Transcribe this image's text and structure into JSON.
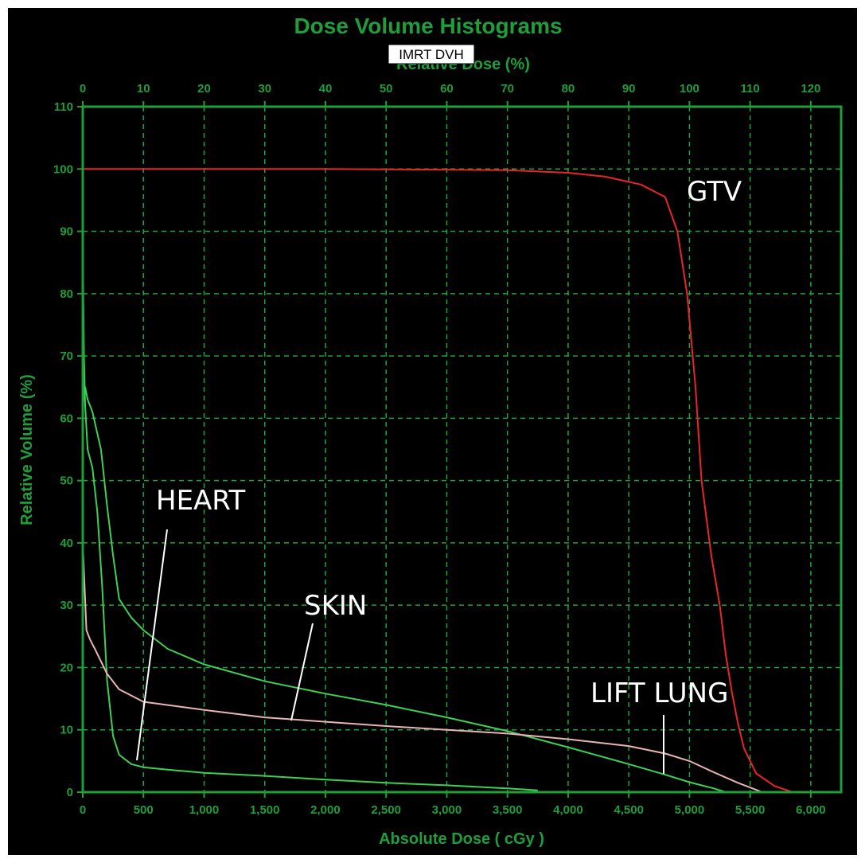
{
  "chart_data": {
    "type": "line",
    "title": "Dose Volume Histograms",
    "subtitle": "IMRT DVH",
    "xlabel": "Absolute Dose ( cGy )",
    "x2label": "Relative Dose (%)",
    "ylabel": "Relative Volume (%)",
    "xlim": [
      0,
      6250
    ],
    "ylim": [
      0,
      110
    ],
    "x2lim": [
      0,
      125
    ],
    "grid": true,
    "xticks": [
      0,
      500,
      1000,
      1500,
      2000,
      2500,
      3000,
      3500,
      4000,
      4500,
      5000,
      5500,
      6000
    ],
    "xtick_labels": [
      "0",
      "500",
      "1,000",
      "1,500",
      "2,000",
      "2,500",
      "3,000",
      "3,500",
      "4,000",
      "4,500",
      "5,000",
      "5,500",
      "6,000"
    ],
    "x2ticks": [
      0,
      10,
      20,
      30,
      40,
      50,
      60,
      70,
      80,
      90,
      100,
      110,
      120
    ],
    "x2tick_labels": [
      "0",
      "10",
      "20",
      "30",
      "40",
      "50",
      "60",
      "70",
      "80",
      "90",
      "100",
      "110",
      "120"
    ],
    "yticks": [
      0,
      10,
      20,
      30,
      40,
      50,
      60,
      70,
      80,
      90,
      100,
      110
    ],
    "ytick_labels": [
      "0",
      "10",
      "20",
      "30",
      "40",
      "50",
      "60",
      "70",
      "80",
      "90",
      "100",
      "110"
    ],
    "colors": {
      "background": "#000000",
      "frame": "#1f9e3a",
      "grid": "#1fa33c",
      "text": "#1f9e3a",
      "annotation": "#ffffff"
    },
    "series": [
      {
        "key": "gtv",
        "color": "#e8262a",
        "x": [
          0,
          1000,
          2000,
          3000,
          3500,
          4000,
          4300,
          4600,
          4800,
          4900,
          4980,
          5050,
          5100,
          5180,
          5250,
          5300,
          5350,
          5400,
          5450,
          5550,
          5700,
          5850
        ],
        "y": [
          100,
          100,
          100,
          99.9,
          99.8,
          99.4,
          98.8,
          97.5,
          95.5,
          90,
          80,
          65,
          50,
          38,
          30,
          22,
          16,
          11,
          7,
          3,
          1,
          0
        ]
      },
      {
        "key": "heart",
        "color": "#3ecf55",
        "x": [
          0,
          10,
          20,
          40,
          80,
          120,
          160,
          200,
          250,
          300,
          400,
          500,
          700,
          1000,
          1500,
          2000,
          2500,
          3000,
          3500,
          3750
        ],
        "y": [
          88,
          70,
          62,
          55,
          52,
          45,
          33,
          18,
          9,
          6,
          4.5,
          4,
          3.6,
          3.1,
          2.6,
          2.0,
          1.5,
          1.1,
          0.6,
          0.3
        ]
      },
      {
        "key": "lung",
        "color": "#3ecf55",
        "x": [
          0,
          20,
          40,
          80,
          150,
          200,
          250,
          300,
          400,
          500,
          700,
          1000,
          1500,
          2000,
          2500,
          3000,
          3500,
          4000,
          4500,
          4800,
          5000,
          5200,
          5300
        ],
        "y": [
          62,
          65,
          63,
          61,
          55,
          46,
          38,
          31,
          28,
          26,
          23,
          20.5,
          17.8,
          15.8,
          14,
          12,
          9.8,
          7.2,
          4.5,
          2.8,
          1.6,
          0.6,
          0
        ]
      },
      {
        "key": "skin",
        "color": "#e8b4b4",
        "x": [
          0,
          30,
          60,
          100,
          200,
          300,
          500,
          1000,
          1500,
          2000,
          2500,
          3000,
          3500,
          4000,
          4500,
          4800,
          5000,
          5200,
          5400,
          5600
        ],
        "y": [
          40,
          26,
          24.5,
          23,
          19,
          16.5,
          14.5,
          13.2,
          12,
          11.3,
          10.6,
          10,
          9.4,
          8.5,
          7.4,
          6.2,
          5,
          3.2,
          1.5,
          0
        ]
      }
    ],
    "annotations": [
      {
        "text": "GTV",
        "target": "gtv"
      },
      {
        "text": "HEART",
        "target": "heart"
      },
      {
        "text": "SKIN",
        "target": "skin"
      },
      {
        "text": "LIFT LUNG",
        "target": "lung"
      }
    ]
  }
}
